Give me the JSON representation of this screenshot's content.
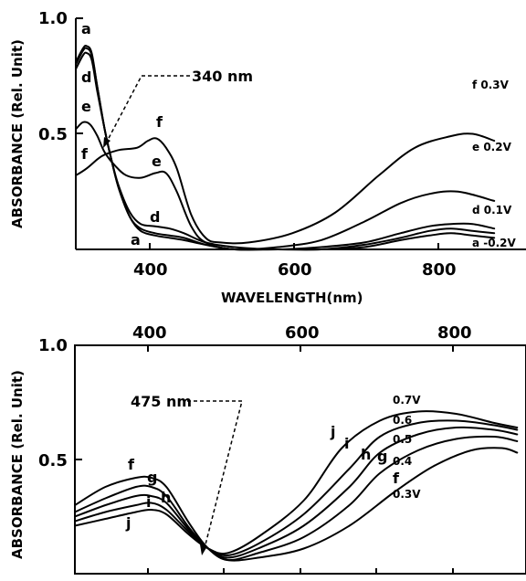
{
  "chart_data": [
    {
      "type": "line",
      "xlabel": "WAVELENGTH(nm)",
      "ylabel": "ABSORBANCE (Rel. Unit)",
      "xlim": [
        300,
        880
      ],
      "ylim": [
        0,
        1.0
      ],
      "x_ticks": [
        "400",
        "600",
        "800"
      ],
      "y_ticks": [
        "1.0",
        "0.5"
      ],
      "annotation": {
        "text": "340 nm",
        "x": 340
      },
      "series": [
        {
          "name": "a",
          "voltage": "-0.2V",
          "label_voltage": "a -0.2V",
          "points": [
            [
              300,
              0.8
            ],
            [
              310,
              0.86
            ],
            [
              315,
              0.87
            ],
            [
              322,
              0.84
            ],
            [
              330,
              0.7
            ],
            [
              340,
              0.52
            ],
            [
              350,
              0.38
            ],
            [
              360,
              0.26
            ],
            [
              375,
              0.14
            ],
            [
              390,
              0.08
            ],
            [
              410,
              0.06
            ],
            [
              430,
              0.05
            ],
            [
              450,
              0.04
            ],
            [
              480,
              0.02
            ],
            [
              520,
              0.0
            ],
            [
              580,
              0.0
            ],
            [
              640,
              0.0
            ],
            [
              700,
              0.01
            ],
            [
              750,
              0.04
            ],
            [
              790,
              0.06
            ],
            [
              820,
              0.07
            ],
            [
              850,
              0.06
            ],
            [
              880,
              0.05
            ]
          ]
        },
        {
          "name": "",
          "voltage": "",
          "points": [
            [
              300,
              0.81
            ],
            [
              310,
              0.87
            ],
            [
              315,
              0.88
            ],
            [
              322,
              0.85
            ],
            [
              330,
              0.7
            ],
            [
              340,
              0.52
            ],
            [
              350,
              0.38
            ],
            [
              360,
              0.26
            ],
            [
              375,
              0.14
            ],
            [
              390,
              0.09
            ],
            [
              410,
              0.07
            ],
            [
              430,
              0.06
            ],
            [
              450,
              0.05
            ],
            [
              480,
              0.02
            ],
            [
              520,
              0.0
            ],
            [
              580,
              0.0
            ],
            [
              640,
              0.0
            ],
            [
              700,
              0.02
            ],
            [
              750,
              0.05
            ],
            [
              790,
              0.08
            ],
            [
              820,
              0.09
            ],
            [
              850,
              0.08
            ],
            [
              880,
              0.07
            ]
          ]
        },
        {
          "name": "d",
          "voltage": "0.1V",
          "label_voltage": "d 0.1V",
          "points": [
            [
              300,
              0.78
            ],
            [
              310,
              0.84
            ],
            [
              315,
              0.85
            ],
            [
              322,
              0.82
            ],
            [
              330,
              0.68
            ],
            [
              340,
              0.52
            ],
            [
              350,
              0.38
            ],
            [
              360,
              0.27
            ],
            [
              375,
              0.16
            ],
            [
              390,
              0.11
            ],
            [
              410,
              0.1
            ],
            [
              430,
              0.09
            ],
            [
              450,
              0.07
            ],
            [
              480,
              0.03
            ],
            [
              520,
              0.01
            ],
            [
              580,
              0.0
            ],
            [
              640,
              0.01
            ],
            [
              700,
              0.03
            ],
            [
              750,
              0.07
            ],
            [
              790,
              0.1
            ],
            [
              820,
              0.11
            ],
            [
              850,
              0.11
            ],
            [
              880,
              0.09
            ]
          ]
        },
        {
          "name": "e",
          "voltage": "0.2V",
          "label_voltage": "e 0.2V",
          "points": [
            [
              300,
              0.52
            ],
            [
              310,
              0.55
            ],
            [
              320,
              0.54
            ],
            [
              330,
              0.49
            ],
            [
              340,
              0.42
            ],
            [
              355,
              0.36
            ],
            [
              370,
              0.32
            ],
            [
              390,
              0.31
            ],
            [
              410,
              0.33
            ],
            [
              425,
              0.33
            ],
            [
              440,
              0.25
            ],
            [
              460,
              0.1
            ],
            [
              480,
              0.03
            ],
            [
              520,
              0.0
            ],
            [
              580,
              0.01
            ],
            [
              640,
              0.04
            ],
            [
              700,
              0.12
            ],
            [
              750,
              0.2
            ],
            [
              790,
              0.24
            ],
            [
              830,
              0.25
            ],
            [
              880,
              0.21
            ]
          ]
        },
        {
          "name": "f",
          "voltage": "0.3V",
          "label_voltage": "f 0.3V",
          "points": [
            [
              300,
              0.32
            ],
            [
              315,
              0.35
            ],
            [
              330,
              0.39
            ],
            [
              340,
              0.41
            ],
            [
              360,
              0.43
            ],
            [
              385,
              0.44
            ],
            [
              400,
              0.47
            ],
            [
              412,
              0.48
            ],
            [
              425,
              0.44
            ],
            [
              440,
              0.35
            ],
            [
              460,
              0.15
            ],
            [
              480,
              0.05
            ],
            [
              500,
              0.03
            ],
            [
              540,
              0.03
            ],
            [
              600,
              0.07
            ],
            [
              660,
              0.16
            ],
            [
              720,
              0.32
            ],
            [
              770,
              0.44
            ],
            [
              820,
              0.49
            ],
            [
              850,
              0.5
            ],
            [
              880,
              0.47
            ]
          ]
        }
      ]
    },
    {
      "type": "line",
      "xlabel": "",
      "ylabel": "ABSORBANCE (Rel. Unit)",
      "xlim": [
        300,
        880
      ],
      "ylim": [
        0,
        1.0
      ],
      "x_ticks": [
        "400",
        "600",
        "800"
      ],
      "y_ticks": [
        "1.0",
        "0.5"
      ],
      "annotation": {
        "text": "475 nm",
        "x": 475
      },
      "series": [
        {
          "name": "f",
          "voltage": "0.3V",
          "points": [
            [
              300,
              0.3
            ],
            [
              340,
              0.38
            ],
            [
              380,
              0.42
            ],
            [
              400,
              0.42
            ],
            [
              420,
              0.38
            ],
            [
              450,
              0.22
            ],
            [
              475,
              0.11
            ],
            [
              500,
              0.06
            ],
            [
              540,
              0.07
            ],
            [
              600,
              0.11
            ],
            [
              660,
              0.21
            ],
            [
              720,
              0.36
            ],
            [
              770,
              0.47
            ],
            [
              820,
              0.54
            ],
            [
              860,
              0.55
            ],
            [
              880,
              0.53
            ]
          ]
        },
        {
          "name": "g",
          "voltage": "0.4V",
          "points": [
            [
              300,
              0.27
            ],
            [
              340,
              0.33
            ],
            [
              380,
              0.38
            ],
            [
              400,
              0.38
            ],
            [
              420,
              0.34
            ],
            [
              450,
              0.2
            ],
            [
              475,
              0.11
            ],
            [
              500,
              0.06
            ],
            [
              540,
              0.09
            ],
            [
              600,
              0.16
            ],
            [
              660,
              0.3
            ],
            [
              700,
              0.44
            ],
            [
              750,
              0.54
            ],
            [
              800,
              0.59
            ],
            [
              850,
              0.6
            ],
            [
              880,
              0.58
            ]
          ]
        },
        {
          "name": "h",
          "voltage": "0.5V",
          "points": [
            [
              300,
              0.25
            ],
            [
              340,
              0.3
            ],
            [
              380,
              0.34
            ],
            [
              400,
              0.34
            ],
            [
              420,
              0.31
            ],
            [
              450,
              0.19
            ],
            [
              475,
              0.11
            ],
            [
              500,
              0.07
            ],
            [
              540,
              0.11
            ],
            [
              600,
              0.21
            ],
            [
              660,
              0.38
            ],
            [
              700,
              0.53
            ],
            [
              750,
              0.61
            ],
            [
              800,
              0.64
            ],
            [
              850,
              0.63
            ],
            [
              880,
              0.61
            ]
          ]
        },
        {
          "name": "i",
          "voltage": "0.6V",
          "points": [
            [
              300,
              0.23
            ],
            [
              340,
              0.27
            ],
            [
              380,
              0.3
            ],
            [
              400,
              0.31
            ],
            [
              420,
              0.28
            ],
            [
              450,
              0.18
            ],
            [
              475,
              0.11
            ],
            [
              500,
              0.08
            ],
            [
              540,
              0.13
            ],
            [
              600,
              0.26
            ],
            [
              660,
              0.46
            ],
            [
              700,
              0.6
            ],
            [
              750,
              0.66
            ],
            [
              800,
              0.67
            ],
            [
              850,
              0.65
            ],
            [
              880,
              0.63
            ]
          ]
        },
        {
          "name": "j",
          "voltage": "0.7V",
          "points": [
            [
              300,
              0.21
            ],
            [
              340,
              0.24
            ],
            [
              380,
              0.27
            ],
            [
              400,
              0.28
            ],
            [
              420,
              0.26
            ],
            [
              450,
              0.17
            ],
            [
              475,
              0.11
            ],
            [
              500,
              0.09
            ],
            [
              540,
              0.16
            ],
            [
              600,
              0.32
            ],
            [
              650,
              0.55
            ],
            [
              700,
              0.67
            ],
            [
              750,
              0.71
            ],
            [
              800,
              0.7
            ],
            [
              850,
              0.66
            ],
            [
              880,
              0.64
            ]
          ]
        }
      ]
    }
  ],
  "page": {
    "top": {
      "ylabel": "ABSORBANCE (Rel. Unit)",
      "xlabel": "WAVELENGTH(nm)",
      "y_top": "1.0",
      "y_mid": "0.5",
      "x_400": "400",
      "x_600": "600",
      "x_800": "800",
      "annot": "340 nm",
      "lbl_a": "a",
      "lbl_d1": "d",
      "lbl_e1": "e",
      "lbl_f1": "f",
      "lbl_f2": "f",
      "lbl_e2": "e",
      "lbl_d2": "d",
      "lbl_a2": "a",
      "v_f": "f 0.3V",
      "v_e": "e 0.2V",
      "v_d": "d 0.1V",
      "v_a": "a -0.2V"
    },
    "bottom": {
      "ylabel": "ABSORBANCE (Rel. Unit)",
      "y_top": "1.0",
      "y_mid": "0.5",
      "x_400": "400",
      "x_600": "600",
      "x_800": "800",
      "annot": "475 nm",
      "lbl_f": "f",
      "lbl_g": "g",
      "lbl_h": "h",
      "lbl_i": "i",
      "lbl_j": "j",
      "r_j": "j",
      "r_i": "i",
      "r_h": "h",
      "r_g": "g",
      "r_f": "f",
      "v_07": "0.7V",
      "v_06": "0.6",
      "v_05": "0.5",
      "v_04": "0.4",
      "v_03": "0.3V"
    }
  }
}
